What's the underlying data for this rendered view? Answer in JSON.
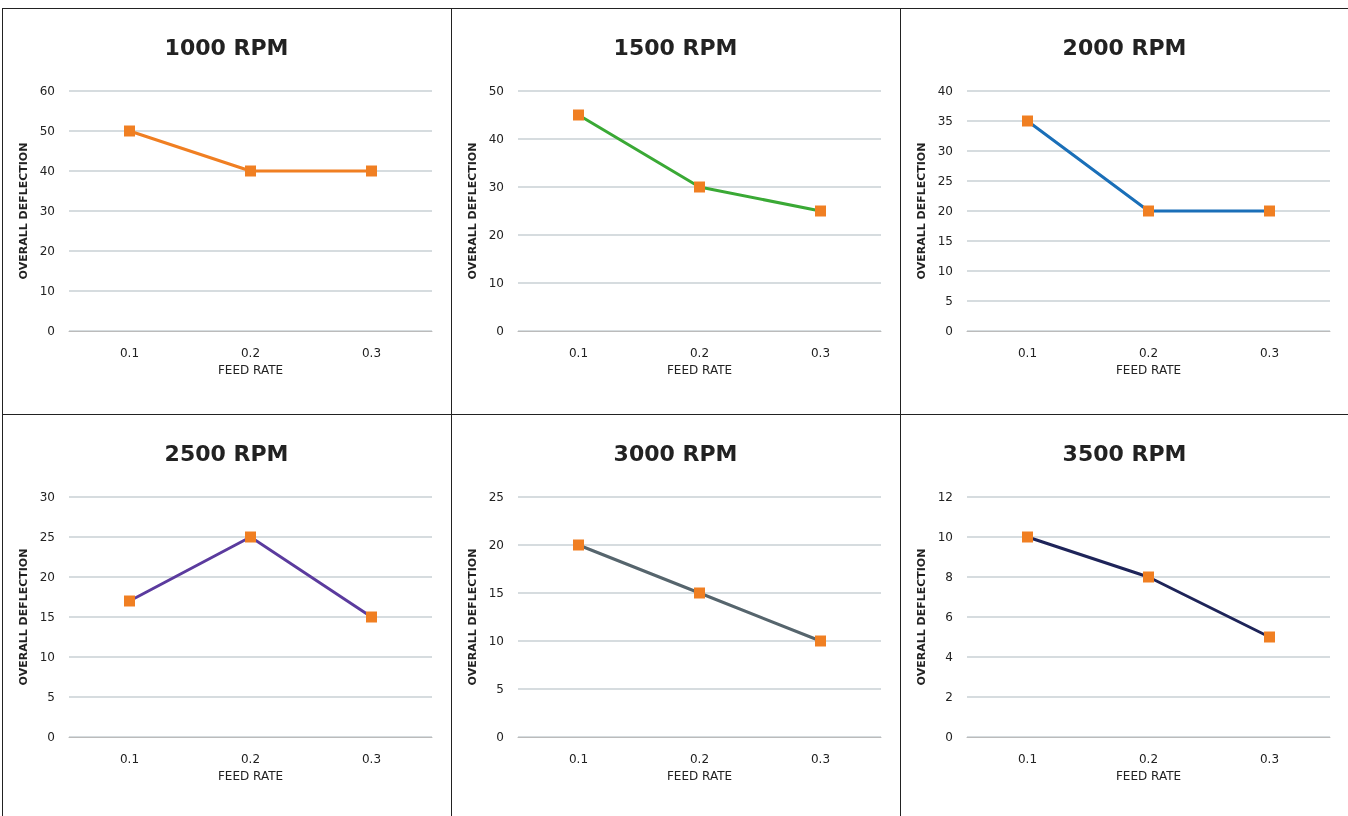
{
  "chart_data": [
    {
      "type": "line",
      "title": "1000 RPM",
      "xlabel": "FEED RATE",
      "ylabel": "OVERALL DEFLECTION",
      "categories": [
        "0.1",
        "0.2",
        "0.3"
      ],
      "series": [
        {
          "color": "#f07f22",
          "colors": [
            "#f07f22",
            "#f07f22",
            "#f07f22"
          ],
          "values": [
            50,
            40,
            40
          ]
        }
      ],
      "ylim": [
        0,
        60
      ],
      "yticks": [
        0,
        10,
        20,
        30,
        40,
        50,
        60
      ],
      "grid": "y",
      "marker": "square",
      "line_style": "solid"
    },
    {
      "type": "line",
      "title": "1500 RPM",
      "xlabel": "FEED RATE",
      "ylabel": "OVERALL DEFLECTION",
      "categories": [
        "0.1",
        "0.2",
        "0.3"
      ],
      "series": [
        {
          "color": "#3aa935",
          "colors": [
            "#f07f22",
            "#f07f22",
            "#f07f22"
          ],
          "values": [
            45,
            30,
            25
          ]
        }
      ],
      "ylim": [
        0,
        50
      ],
      "yticks": [
        0,
        10,
        20,
        30,
        40,
        50
      ],
      "grid": "y",
      "marker": "square",
      "line_style": "solid"
    },
    {
      "type": "line",
      "title": "2000 RPM",
      "xlabel": "FEED RATE",
      "ylabel": "OVERALL DEFLECTION",
      "categories": [
        "0.1",
        "0.2",
        "0.3"
      ],
      "series": [
        {
          "color": "#1a6fb8",
          "colors": [
            "#f07f22",
            "#f07f22",
            "#f07f22"
          ],
          "values": [
            35,
            20,
            20
          ]
        }
      ],
      "ylim": [
        0,
        40
      ],
      "yticks": [
        0,
        5,
        10,
        15,
        20,
        25,
        30,
        35,
        40
      ],
      "grid": "y",
      "marker": "square",
      "line_style": "solid"
    },
    {
      "type": "line",
      "title": "2500 RPM",
      "xlabel": "FEED RATE",
      "ylabel": "OVERALL DEFLECTION",
      "categories": [
        "0.1",
        "0.2",
        "0.3"
      ],
      "series": [
        {
          "color": "#5b3b9e",
          "colors": [
            "#f07f22",
            "#f07f22",
            "#f07f22"
          ],
          "values": [
            17,
            25,
            15
          ]
        }
      ],
      "ylim": [
        0,
        30
      ],
      "yticks": [
        0,
        5,
        10,
        15,
        20,
        25,
        30
      ],
      "grid": "y",
      "marker": "square",
      "line_style": "solid"
    },
    {
      "type": "line",
      "title": "3000 RPM",
      "xlabel": "FEED RATE",
      "ylabel": "OVERALL DEFLECTION",
      "categories": [
        "0.1",
        "0.2",
        "0.3"
      ],
      "series": [
        {
          "color": "#56656d",
          "colors": [
            "#f07f22",
            "#f07f22",
            "#f07f22"
          ],
          "values": [
            20,
            15,
            10
          ]
        }
      ],
      "ylim": [
        0,
        25
      ],
      "yticks": [
        0,
        5,
        10,
        15,
        20,
        25
      ],
      "grid": "y",
      "marker": "square",
      "line_style": "solid"
    },
    {
      "type": "line",
      "title": "3500 RPM",
      "xlabel": "FEED RATE",
      "ylabel": "OVERALL DEFLECTION",
      "categories": [
        "0.1",
        "0.2",
        "0.3"
      ],
      "series": [
        {
          "color": "#1e2459",
          "colors": [
            "#f07f22",
            "#f07f22",
            "#f07f22"
          ],
          "values": [
            10,
            8,
            5
          ]
        }
      ],
      "ylim": [
        0,
        12
      ],
      "yticks": [
        0,
        2,
        4,
        6,
        8,
        10,
        12
      ],
      "grid": "y",
      "marker": "square",
      "line_style": "solid"
    }
  ]
}
